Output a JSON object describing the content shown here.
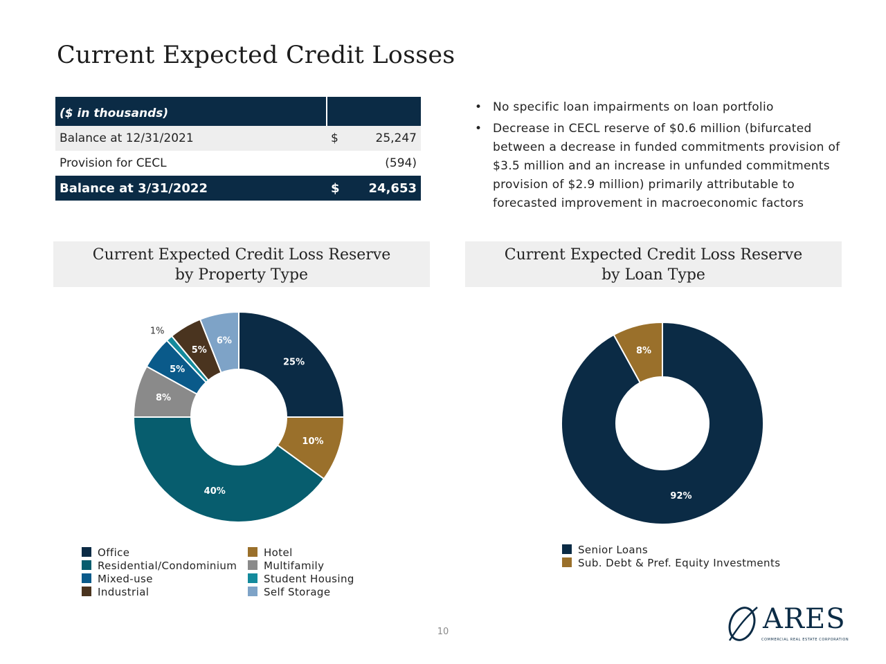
{
  "page": {
    "title": "Current Expected Credit Losses",
    "page_number": "10"
  },
  "table": {
    "header": "($ in thousands)",
    "rows": [
      {
        "label": "Balance at 12/31/2021",
        "currency": "$",
        "value": "25,247"
      },
      {
        "label": "Provision for CECL",
        "currency": "",
        "value": "(594)"
      },
      {
        "label": "Balance at 3/31/2022",
        "currency": "$",
        "value": "24,653"
      }
    ]
  },
  "bullets": [
    "No specific loan impairments on loan portfolio",
    "Decrease in CECL reserve of $0.6 million (bifurcated between a decrease in funded commitments provision of $3.5 million and an increase in unfunded commitments provision of $2.9 million) primarily attributable to forecasted improvement in macroeconomic factors"
  ],
  "bullet_glyph": "•",
  "logo": {
    "text": "ARES",
    "subtext": "COMMERCIAL REAL ESTATE CORPORATION",
    "icon": "ares-swoosh-logo"
  },
  "chart_data": [
    {
      "type": "pie",
      "donut": true,
      "title_lines": [
        "Current Expected Credit Loss Reserve",
        "by Property Type"
      ],
      "categories": [
        "Office",
        "Hotel",
        "Residential/Condominium",
        "Multifamily",
        "Mixed-use",
        "Student Housing",
        "Industrial",
        "Self Storage"
      ],
      "values": [
        25,
        10,
        40,
        8,
        5,
        1,
        5,
        6
      ],
      "labels": [
        "25%",
        "10%",
        "40%",
        "8%",
        "5%",
        "1%",
        "5%",
        "6%"
      ],
      "colors": [
        "#0b2b45",
        "#9a702b",
        "#075d6e",
        "#8a8a8a",
        "#0a5a8a",
        "#138a9c",
        "#4a341f",
        "#7ea3c7"
      ],
      "legend": {
        "placement": "bottom",
        "columns": [
          [
            "Office",
            "Residential/Condominium",
            "Mixed-use",
            "Industrial"
          ],
          [
            "Hotel",
            "Multifamily",
            "Student Housing",
            "Self Storage"
          ]
        ]
      }
    },
    {
      "type": "pie",
      "donut": true,
      "title_lines": [
        "Current Expected Credit Loss Reserve",
        "by Loan Type"
      ],
      "categories": [
        "Senior Loans",
        "Sub. Debt & Pref. Equity Investments"
      ],
      "values": [
        92,
        8
      ],
      "labels": [
        "92%",
        "8%"
      ],
      "colors": [
        "#0b2b45",
        "#9a702b"
      ],
      "legend": {
        "placement": "bottom",
        "columns": [
          [
            "Senior Loans",
            "Sub. Debt & Pref. Equity Investments"
          ]
        ]
      }
    }
  ]
}
